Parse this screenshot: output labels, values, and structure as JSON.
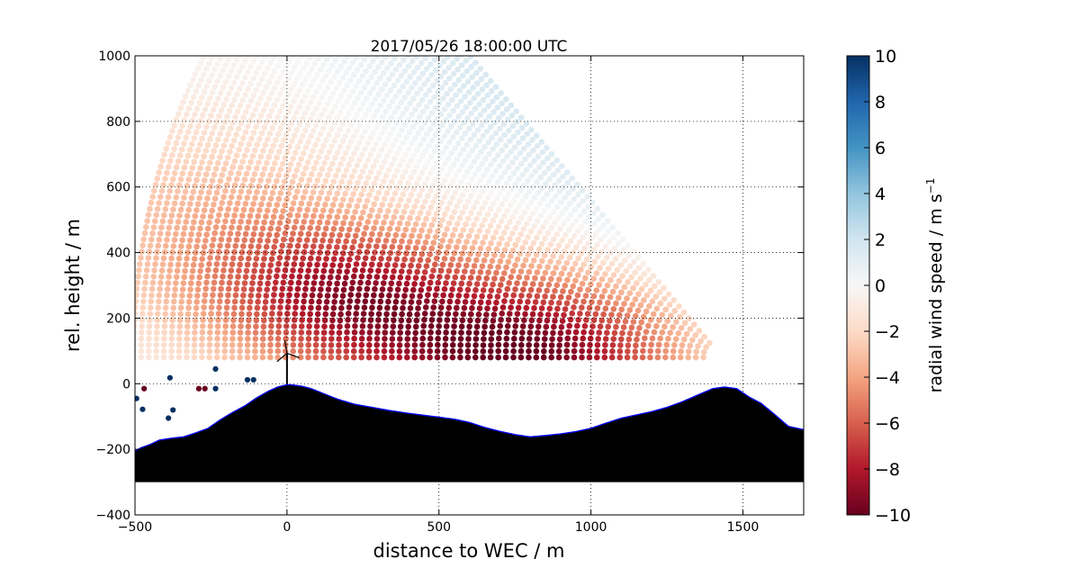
{
  "chart_data": {
    "type": "scatter",
    "title": "2017/05/26 18:00:00 UTC",
    "xlabel": "distance to WEC / m",
    "ylabel": "rel. height / m",
    "xlim": [
      -500,
      1700
    ],
    "ylim": [
      -400,
      1000
    ],
    "xticks": [
      -500,
      0,
      500,
      1000,
      1500
    ],
    "yticks": [
      -400,
      -200,
      0,
      200,
      400,
      600,
      800,
      1000
    ],
    "xtick_labels": [
      "−500",
      "0",
      "500",
      "1000",
      "1500"
    ],
    "ytick_labels": [
      "−400",
      "−200",
      "0",
      "200",
      "400",
      "600",
      "800",
      "1000"
    ],
    "grid": true,
    "scan_origin": {
      "x": 1430,
      "y": 80
    },
    "scan_ranges": {
      "r_min": 60,
      "r_max": 1950,
      "r_step": 25
    },
    "scan_elevation_deg": [
      0,
      48
    ],
    "turbine": {
      "x": 0,
      "hub_height": 93,
      "blade_length": 40
    },
    "terrain_base": -300,
    "terrain": [
      [
        -500,
        -205
      ],
      [
        -480,
        -195
      ],
      [
        -450,
        -185
      ],
      [
        -420,
        -172
      ],
      [
        -380,
        -166
      ],
      [
        -340,
        -162
      ],
      [
        -300,
        -150
      ],
      [
        -260,
        -136
      ],
      [
        -220,
        -110
      ],
      [
        -180,
        -88
      ],
      [
        -140,
        -68
      ],
      [
        -100,
        -43
      ],
      [
        -60,
        -22
      ],
      [
        -30,
        -10
      ],
      [
        0,
        -3
      ],
      [
        20,
        -4
      ],
      [
        50,
        -8
      ],
      [
        80,
        -15
      ],
      [
        120,
        -30
      ],
      [
        170,
        -48
      ],
      [
        220,
        -62
      ],
      [
        280,
        -72
      ],
      [
        340,
        -82
      ],
      [
        400,
        -90
      ],
      [
        450,
        -96
      ],
      [
        500,
        -102
      ],
      [
        550,
        -108
      ],
      [
        600,
        -118
      ],
      [
        650,
        -133
      ],
      [
        700,
        -145
      ],
      [
        750,
        -155
      ],
      [
        800,
        -162
      ],
      [
        850,
        -158
      ],
      [
        900,
        -153
      ],
      [
        950,
        -146
      ],
      [
        1000,
        -136
      ],
      [
        1050,
        -120
      ],
      [
        1100,
        -105
      ],
      [
        1150,
        -95
      ],
      [
        1200,
        -85
      ],
      [
        1250,
        -72
      ],
      [
        1300,
        -55
      ],
      [
        1350,
        -35
      ],
      [
        1400,
        -15
      ],
      [
        1440,
        -10
      ],
      [
        1480,
        -15
      ],
      [
        1520,
        -40
      ],
      [
        1560,
        -60
      ],
      [
        1600,
        -90
      ],
      [
        1650,
        -130
      ],
      [
        1700,
        -140
      ]
    ],
    "outliers": [
      {
        "x": -495,
        "y": -45,
        "v": 10
      },
      {
        "x": -475,
        "y": -78,
        "v": 10
      },
      {
        "x": -470,
        "y": -15,
        "v": -10
      },
      {
        "x": -385,
        "y": 18,
        "v": 10
      },
      {
        "x": -375,
        "y": -80,
        "v": 10
      },
      {
        "x": -390,
        "y": -105,
        "v": 10
      },
      {
        "x": -290,
        "y": -15,
        "v": -10
      },
      {
        "x": -270,
        "y": -15,
        "v": -10
      },
      {
        "x": -235,
        "y": 45,
        "v": 10
      },
      {
        "x": -235,
        "y": -15,
        "v": 10
      },
      {
        "x": -130,
        "y": 12,
        "v": 10
      },
      {
        "x": -110,
        "y": 12,
        "v": 10
      }
    ],
    "colorbar": {
      "label": "radial wind speed / m s",
      "label_superscript": "−1",
      "vmin": -10,
      "vmax": 10,
      "ticks": [
        -10,
        -8,
        -6,
        -4,
        -2,
        0,
        2,
        4,
        6,
        8,
        10
      ],
      "tick_labels": [
        "−10",
        "−8",
        "−6",
        "−4",
        "−2",
        "0",
        "2",
        "4",
        "6",
        "8",
        "10"
      ],
      "colormap": "RdBu",
      "colors": [
        "#67001f",
        "#b2182b",
        "#d6604d",
        "#f4a582",
        "#fddbc7",
        "#f7f7f7",
        "#d1e5f0",
        "#92c5de",
        "#4393c3",
        "#2166ac",
        "#053061"
      ]
    },
    "colors": {
      "terrain_fill": "#000000",
      "terrain_edge": "#0000ff",
      "grid": "#000000"
    }
  }
}
